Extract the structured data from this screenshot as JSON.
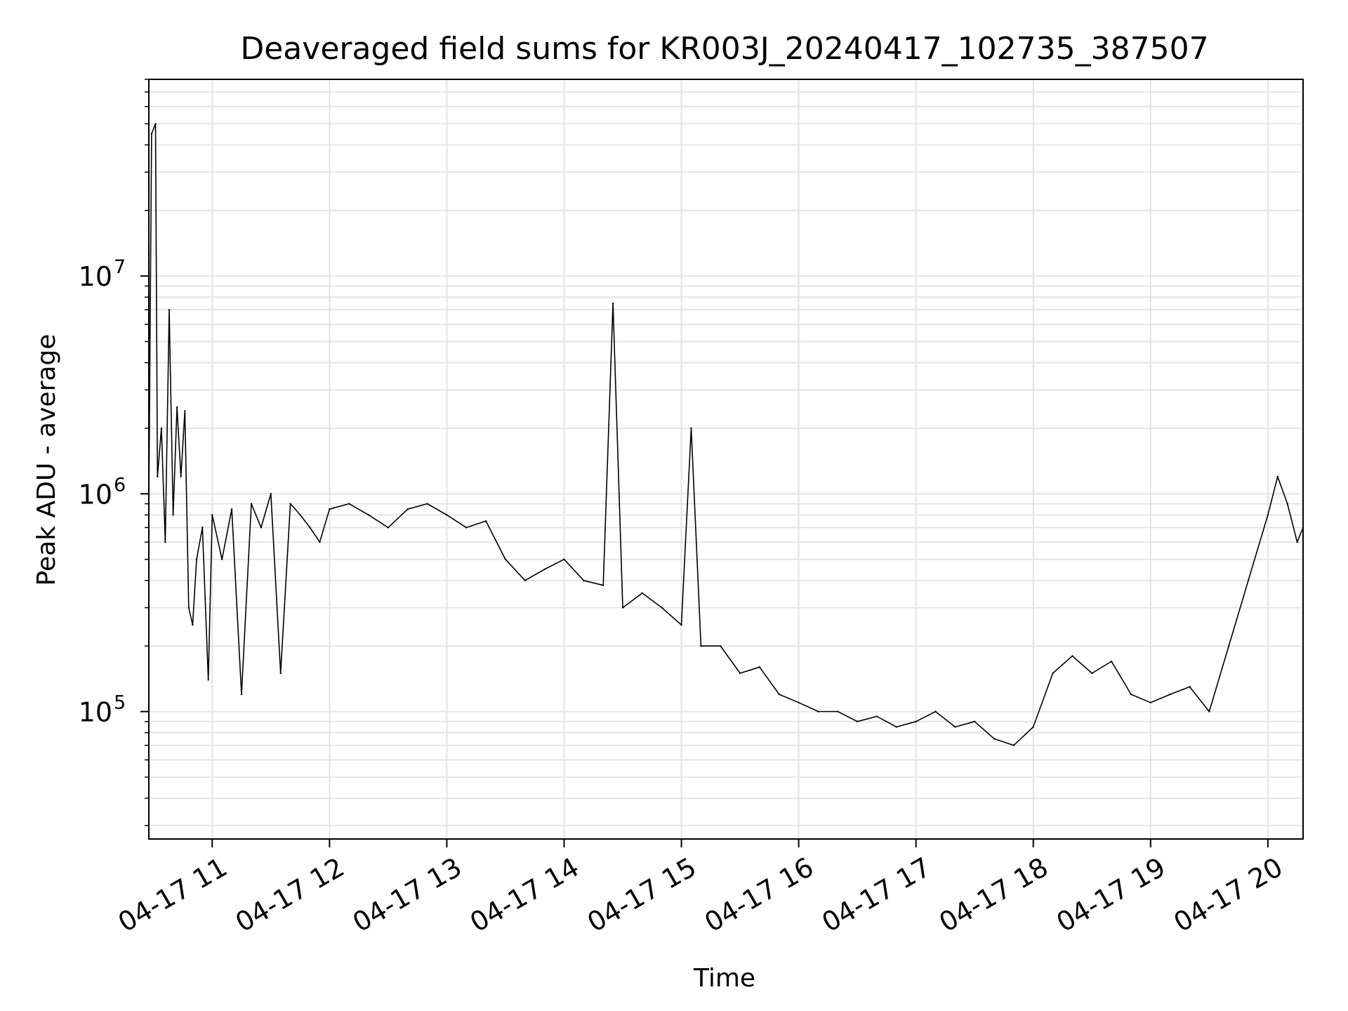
{
  "chart_data": {
    "type": "line",
    "title": "Deaveraged field sums for KR003J_20240417_102735_387507",
    "xlabel": "Time",
    "ylabel": "Peak ADU - average",
    "yscale": "log",
    "ylim": [
      26000,
      80000000
    ],
    "xlim": [
      "2024-04-17T10:27:35",
      "2024-04-17T20:18:00"
    ],
    "grid": true,
    "x_ticks": [
      {
        "value": "2024-04-17T11:00",
        "label": "04-17 11"
      },
      {
        "value": "2024-04-17T12:00",
        "label": "04-17 12"
      },
      {
        "value": "2024-04-17T13:00",
        "label": "04-17 13"
      },
      {
        "value": "2024-04-17T14:00",
        "label": "04-17 14"
      },
      {
        "value": "2024-04-17T15:00",
        "label": "04-17 15"
      },
      {
        "value": "2024-04-17T16:00",
        "label": "04-17 16"
      },
      {
        "value": "2024-04-17T17:00",
        "label": "04-17 17"
      },
      {
        "value": "2024-04-17T18:00",
        "label": "04-17 18"
      },
      {
        "value": "2024-04-17T19:00",
        "label": "04-17 19"
      },
      {
        "value": "2024-04-17T20:00",
        "label": "04-17 20"
      }
    ],
    "y_ticks": [
      {
        "value": 100000,
        "base": "10",
        "exp": "5"
      },
      {
        "value": 1000000,
        "base": "10",
        "exp": "6"
      },
      {
        "value": 10000000,
        "base": "10",
        "exp": "7"
      }
    ],
    "series": [
      {
        "color": "#000000",
        "x": [
          "2024-04-17T10:27:35",
          "2024-04-17T10:29",
          "2024-04-17T10:31",
          "2024-04-17T10:32",
          "2024-04-17T10:34",
          "2024-04-17T10:36",
          "2024-04-17T10:38",
          "2024-04-17T10:40",
          "2024-04-17T10:42",
          "2024-04-17T10:44",
          "2024-04-17T10:46",
          "2024-04-17T10:48",
          "2024-04-17T10:50",
          "2024-04-17T10:52",
          "2024-04-17T10:55",
          "2024-04-17T10:58",
          "2024-04-17T11:00",
          "2024-04-17T11:05",
          "2024-04-17T11:10",
          "2024-04-17T11:15",
          "2024-04-17T11:20",
          "2024-04-17T11:25",
          "2024-04-17T11:30",
          "2024-04-17T11:35",
          "2024-04-17T11:40",
          "2024-04-17T11:45",
          "2024-04-17T11:50",
          "2024-04-17T11:55",
          "2024-04-17T12:00",
          "2024-04-17T12:10",
          "2024-04-17T12:20",
          "2024-04-17T12:30",
          "2024-04-17T12:40",
          "2024-04-17T12:50",
          "2024-04-17T13:00",
          "2024-04-17T13:10",
          "2024-04-17T13:20",
          "2024-04-17T13:30",
          "2024-04-17T13:40",
          "2024-04-17T13:50",
          "2024-04-17T14:00",
          "2024-04-17T14:10",
          "2024-04-17T14:20",
          "2024-04-17T14:25",
          "2024-04-17T14:30",
          "2024-04-17T14:40",
          "2024-04-17T14:50",
          "2024-04-17T15:00",
          "2024-04-17T15:05",
          "2024-04-17T15:10",
          "2024-04-17T15:20",
          "2024-04-17T15:30",
          "2024-04-17T15:40",
          "2024-04-17T15:50",
          "2024-04-17T16:00",
          "2024-04-17T16:10",
          "2024-04-17T16:20",
          "2024-04-17T16:30",
          "2024-04-17T16:40",
          "2024-04-17T16:50",
          "2024-04-17T17:00",
          "2024-04-17T17:10",
          "2024-04-17T17:20",
          "2024-04-17T17:30",
          "2024-04-17T17:40",
          "2024-04-17T17:50",
          "2024-04-17T18:00",
          "2024-04-17T18:10",
          "2024-04-17T18:20",
          "2024-04-17T18:30",
          "2024-04-17T18:40",
          "2024-04-17T18:50",
          "2024-04-17T19:00",
          "2024-04-17T19:10",
          "2024-04-17T19:20",
          "2024-04-17T19:30",
          "2024-04-17T19:40",
          "2024-04-17T19:50",
          "2024-04-17T20:00",
          "2024-04-17T20:05",
          "2024-04-17T20:10",
          "2024-04-17T20:15",
          "2024-04-17T20:18"
        ],
        "y": [
          900000,
          45000000,
          50000000,
          1200000,
          2000000,
          600000,
          7000000,
          800000,
          2500000,
          1200000,
          2400000,
          300000,
          250000,
          500000,
          700000,
          140000,
          800000,
          500000,
          850000,
          120000,
          900000,
          700000,
          1000000,
          150000,
          900000,
          800000,
          700000,
          600000,
          850000,
          900000,
          800000,
          700000,
          850000,
          900000,
          800000,
          700000,
          750000,
          500000,
          400000,
          450000,
          500000,
          400000,
          380000,
          7500000,
          300000,
          350000,
          300000,
          250000,
          2000000,
          200000,
          200000,
          150000,
          160000,
          120000,
          110000,
          100000,
          100000,
          90000,
          95000,
          85000,
          90000,
          100000,
          85000,
          90000,
          75000,
          70000,
          85000,
          150000,
          180000,
          150000,
          170000,
          120000,
          110000,
          120000,
          130000,
          100000,
          200000,
          400000,
          800000,
          1200000,
          900000,
          600000,
          700000
        ]
      }
    ]
  }
}
